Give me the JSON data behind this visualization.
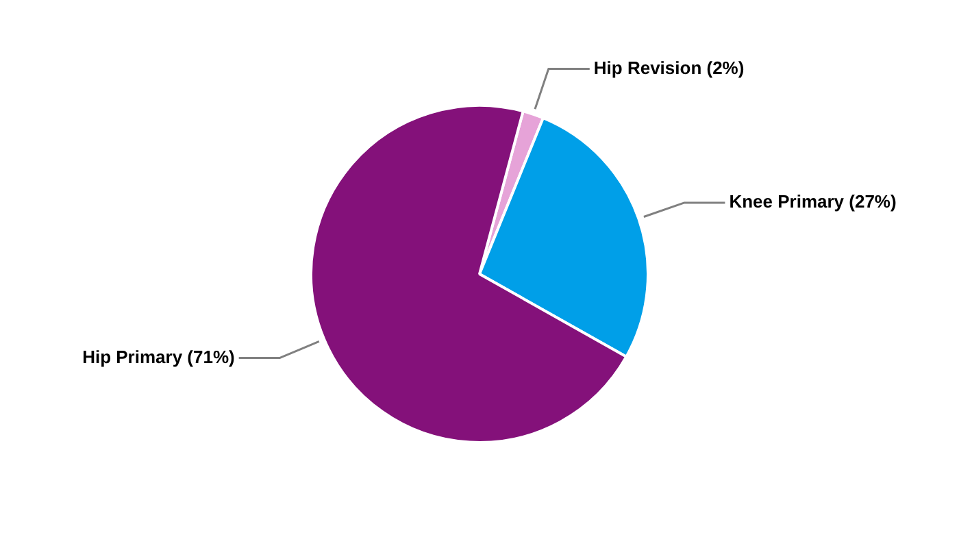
{
  "chart_data": {
    "type": "pie",
    "categories": [
      "Hip Revision (2%)",
      "Knee Primary (27%)",
      "Hip Primary (71%)"
    ],
    "values": [
      2,
      27,
      71
    ],
    "colors": [
      "#e6a3d8",
      "#009fe8",
      "#84117a"
    ],
    "legend": false
  }
}
